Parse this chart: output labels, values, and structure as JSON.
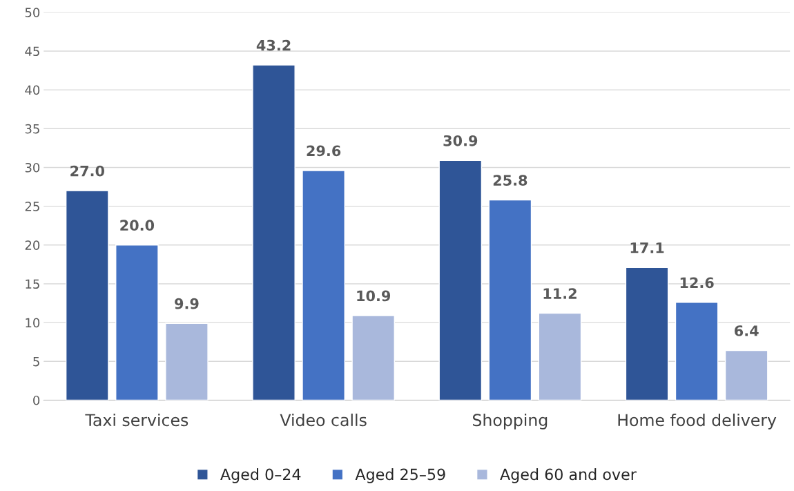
{
  "chart_data": {
    "type": "bar",
    "categories": [
      "Taxi services",
      "Video calls",
      "Shopping",
      "Home food delivery"
    ],
    "series": [
      {
        "name": "Aged 0–24",
        "color": "#2f5597",
        "values": [
          27.0,
          43.2,
          30.9,
          17.1
        ],
        "value_labels": [
          "27.0",
          "43.2",
          "30.9",
          "17.1"
        ]
      },
      {
        "name": "Aged 25–59",
        "color": "#4472c4",
        "values": [
          20.0,
          29.6,
          25.8,
          12.6
        ],
        "value_labels": [
          "20.0",
          "29.6",
          "25.8",
          "12.6"
        ]
      },
      {
        "name": "Aged 60 and over",
        "color": "#a9b8dc",
        "values": [
          9.9,
          10.9,
          11.2,
          6.4
        ],
        "value_labels": [
          "9.9",
          "10.9",
          "11.2",
          "6.4"
        ]
      }
    ],
    "ylim": [
      0,
      50
    ],
    "yticks": [
      0,
      5,
      10,
      15,
      20,
      25,
      30,
      35,
      40,
      45,
      50
    ],
    "grid": "y",
    "legend": "bottom"
  }
}
